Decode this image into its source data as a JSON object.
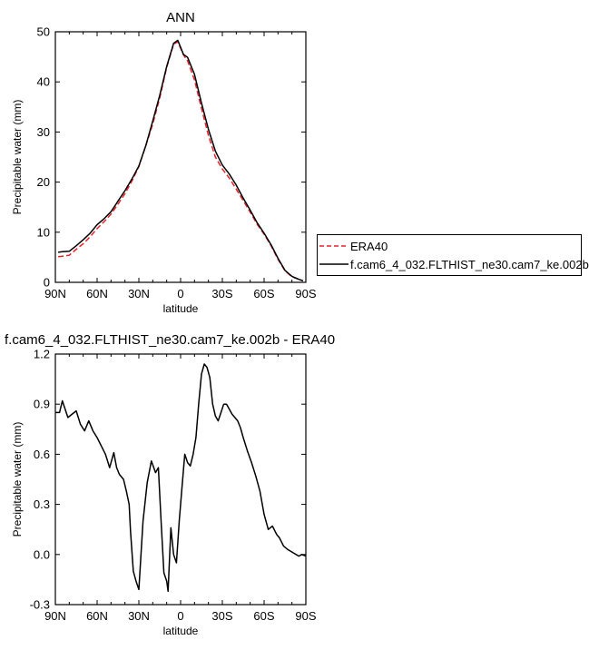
{
  "chart_data": [
    {
      "type": "line",
      "title": "ANN",
      "xlabel": "latitude",
      "ylabel": "Precipitable water (mm)",
      "xlim": [
        90,
        -90
      ],
      "ylim": [
        0,
        50
      ],
      "x_ticks": [
        90,
        60,
        30,
        0,
        -30,
        -60,
        -90
      ],
      "x_tick_labels": [
        "90N",
        "60N",
        "30N",
        "0",
        "30S",
        "60S",
        "90S"
      ],
      "y_ticks": [
        0,
        10,
        20,
        30,
        40,
        50
      ],
      "y_tick_labels": [
        "0",
        "10",
        "20",
        "30",
        "40",
        "50"
      ],
      "grid": false,
      "legend": "right",
      "x": [
        88,
        85,
        80,
        75,
        70,
        65,
        60,
        55,
        50,
        45,
        40,
        35,
        30,
        25,
        20,
        15,
        10,
        5,
        2,
        -2,
        -5,
        -10,
        -15,
        -20,
        -25,
        -30,
        -35,
        -40,
        -45,
        -50,
        -55,
        -60,
        -65,
        -70,
        -75,
        -80,
        -85,
        -88
      ],
      "series": [
        {
          "name": "ERA40",
          "color": "#e8212a",
          "dash": true,
          "values": [
            5.1,
            5.2,
            5.4,
            6.6,
            7.7,
            9.1,
            10.7,
            12.1,
            13.6,
            15.6,
            17.7,
            20.2,
            23.1,
            27.3,
            31.6,
            36.8,
            42.9,
            47.5,
            48.0,
            45.4,
            44.2,
            40.4,
            34.7,
            29.3,
            25.0,
            22.6,
            20.8,
            18.6,
            16.3,
            14.0,
            11.6,
            9.6,
            7.3,
            4.6,
            2.3,
            1.1,
            0.6,
            0.3
          ]
        },
        {
          "name": "f.cam6_4_032.FLTHIST_ne30.cam7_ke.002b",
          "color": "#000000",
          "dash": false,
          "values": [
            6.0,
            6.1,
            6.2,
            7.3,
            8.5,
            9.8,
            11.5,
            12.7,
            14.1,
            16.2,
            18.3,
            20.6,
            23.2,
            27.3,
            32.2,
            37.3,
            43.1,
            47.7,
            48.3,
            45.5,
            44.9,
            41.5,
            35.8,
            30.5,
            26.2,
            23.4,
            21.6,
            19.4,
            16.8,
            14.4,
            11.9,
            9.8,
            7.5,
            4.8,
            2.4,
            1.2,
            0.6,
            0.3
          ]
        }
      ]
    },
    {
      "type": "line",
      "title": "f.cam6_4_032.FLTHIST_ne30.cam7_ke.002b - ERA40",
      "xlabel": "latitude",
      "ylabel": "Precipitable water (mm)",
      "xlim": [
        90,
        -90
      ],
      "ylim": [
        -0.3,
        1.2
      ],
      "x_ticks": [
        90,
        60,
        30,
        0,
        -30,
        -60,
        -90
      ],
      "x_tick_labels": [
        "90N",
        "60N",
        "30N",
        "0",
        "30S",
        "60S",
        "90S"
      ],
      "y_ticks": [
        -0.3,
        0.0,
        0.3,
        0.6,
        0.9,
        1.2
      ],
      "y_tick_labels": [
        "-0.3",
        "0.0",
        "0.3",
        "0.6",
        "0.9",
        "1.2"
      ],
      "grid": false,
      "x": [
        90,
        87,
        85,
        81,
        75,
        72,
        69,
        66,
        63,
        60,
        57,
        54,
        51,
        48,
        46,
        44,
        41,
        39,
        37,
        36,
        34,
        32,
        30,
        27,
        24,
        21,
        18,
        16,
        14,
        12,
        10,
        9,
        7,
        5,
        3,
        1,
        -1,
        -3,
        -5,
        -7,
        -9,
        -11,
        -13,
        -15,
        -17,
        -19,
        -21,
        -23,
        -25,
        -27,
        -29,
        -31,
        -33,
        -35,
        -37,
        -39,
        -41,
        -43,
        -45,
        -48,
        -51,
        -54,
        -57,
        -60,
        -63,
        -66,
        -69,
        -71,
        -74,
        -77,
        -79,
        -81,
        -83,
        -85,
        -87,
        -90
      ],
      "values": [
        0.85,
        0.85,
        0.92,
        0.82,
        0.86,
        0.78,
        0.74,
        0.8,
        0.74,
        0.7,
        0.65,
        0.6,
        0.52,
        0.61,
        0.52,
        0.48,
        0.45,
        0.38,
        0.3,
        0.14,
        -0.1,
        -0.16,
        -0.21,
        0.2,
        0.43,
        0.56,
        0.49,
        0.52,
        0.2,
        -0.11,
        -0.16,
        -0.22,
        0.16,
        0.0,
        -0.05,
        0.2,
        0.4,
        0.6,
        0.55,
        0.53,
        0.6,
        0.7,
        0.9,
        1.08,
        1.14,
        1.12,
        1.06,
        0.9,
        0.83,
        0.8,
        0.85,
        0.9,
        0.9,
        0.87,
        0.84,
        0.82,
        0.8,
        0.76,
        0.7,
        0.62,
        0.55,
        0.47,
        0.38,
        0.24,
        0.15,
        0.17,
        0.12,
        0.1,
        0.05,
        0.03,
        0.02,
        0.01,
        0.0,
        -0.01,
        0.0,
        -0.01
      ]
    }
  ]
}
